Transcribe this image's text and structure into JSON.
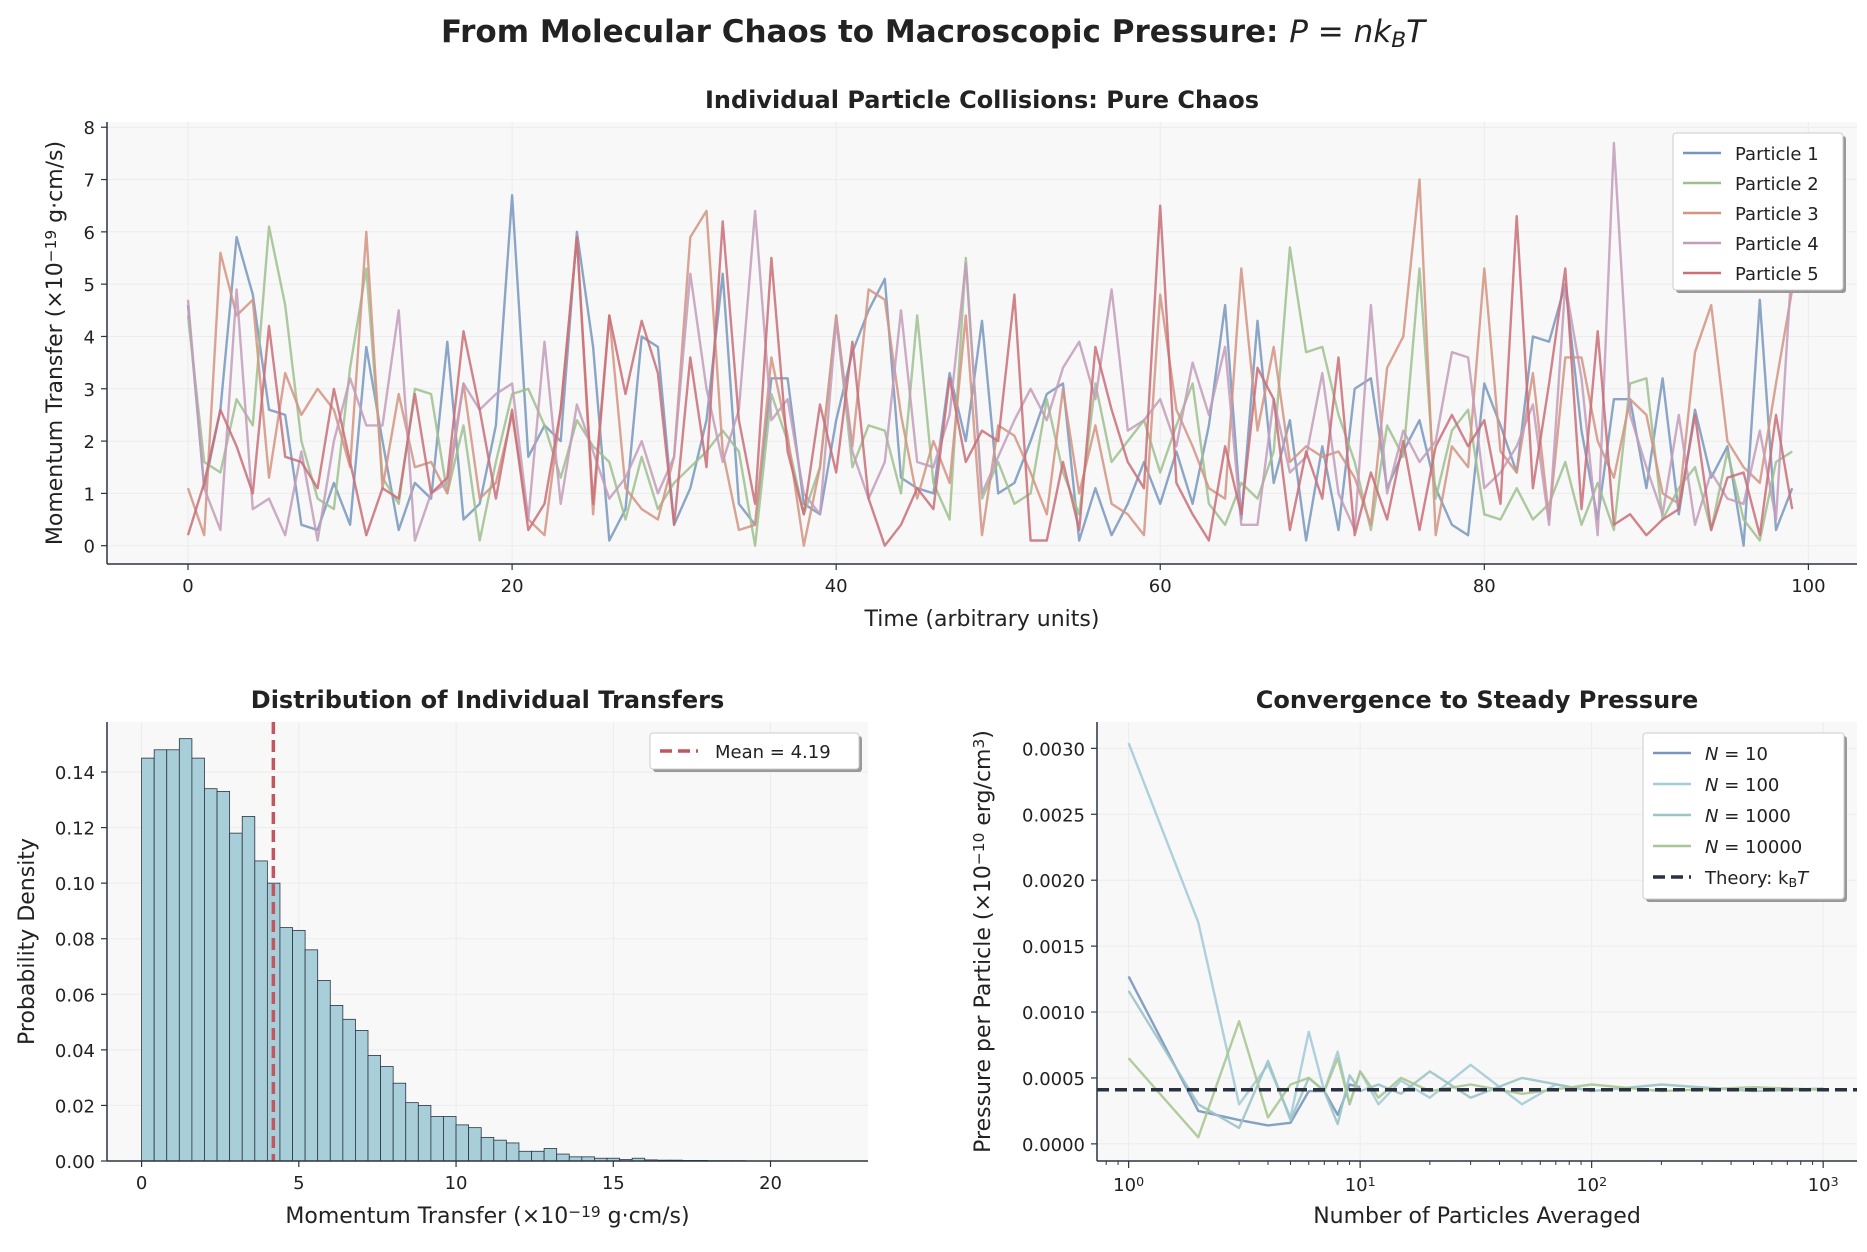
{
  "figure": {
    "suptitle": "From Molecular Chaos to Macroscopic Pressure: P = nk",
    "suptitle_sub": "B",
    "suptitle_tail": "T"
  },
  "chart_data": [
    {
      "id": "collisions",
      "type": "line",
      "title": "Individual Particle Collisions: Pure Chaos",
      "xlabel": "Time (arbitrary units)",
      "ylabel": "Momentum Transfer (×10",
      "ylabel_exp": "−19",
      "ylabel_tail": " g·cm/s)",
      "xlim": [
        -5,
        103
      ],
      "ylim": [
        -0.35,
        8.1
      ],
      "xticks": [
        0,
        20,
        40,
        60,
        80,
        100
      ],
      "yticks": [
        0,
        1,
        2,
        3,
        4,
        5,
        6,
        7,
        8
      ],
      "x_start": 0,
      "x_step": 1,
      "legend": "top-right",
      "series": [
        {
          "name": "Particle 1",
          "color": "#7896bd",
          "values": [
            4.6,
            1.1,
            2.6,
            5.9,
            4.8,
            2.6,
            2.5,
            0.4,
            0.3,
            1.2,
            0.4,
            3.8,
            2.0,
            0.3,
            1.2,
            0.9,
            3.9,
            0.5,
            0.8,
            2.3,
            6.7,
            1.7,
            2.3,
            2.0,
            6.0,
            3.8,
            0.1,
            0.7,
            4.0,
            3.8,
            0.4,
            1.1,
            2.4,
            5.2,
            0.8,
            0.4,
            3.2,
            3.2,
            0.8,
            0.6,
            2.4,
            3.7,
            4.5,
            5.1,
            1.3,
            1.1,
            1.0,
            3.3,
            2.0,
            4.3,
            1.0,
            1.2,
            2.0,
            2.9,
            3.1,
            0.1,
            1.1,
            0.2,
            0.8,
            1.6,
            0.8,
            1.8,
            0.8,
            2.3,
            4.6,
            0.5,
            4.3,
            1.2,
            2.4,
            0.1,
            1.9,
            0.3,
            3.0,
            3.2,
            1.1,
            1.8,
            2.4,
            1.1,
            0.4,
            0.2,
            3.1,
            2.3,
            1.4,
            4.0,
            3.9,
            5.0,
            2.2,
            0.5,
            2.8,
            2.8,
            1.1,
            3.2,
            0.6,
            2.6,
            1.3,
            1.9,
            0.0,
            4.7,
            0.3,
            1.1
          ]
        },
        {
          "name": "Particle 2",
          "color": "#9fc08e",
          "values": [
            4.4,
            1.6,
            1.4,
            2.8,
            2.3,
            6.1,
            4.6,
            2.0,
            0.9,
            0.7,
            3.4,
            5.3,
            1.3,
            0.8,
            3.0,
            2.9,
            1.0,
            2.3,
            0.1,
            1.6,
            2.9,
            3.0,
            2.3,
            1.3,
            2.4,
            1.9,
            1.6,
            0.5,
            1.7,
            0.7,
            1.2,
            1.5,
            1.8,
            2.2,
            1.8,
            0.0,
            2.9,
            2.0,
            0.6,
            1.5,
            4.4,
            1.5,
            2.3,
            2.2,
            1.0,
            4.4,
            1.2,
            0.5,
            5.5,
            0.9,
            1.6,
            0.8,
            1.0,
            2.8,
            1.4,
            0.6,
            3.1,
            1.6,
            2.0,
            2.4,
            1.4,
            2.3,
            3.1,
            0.8,
            0.4,
            1.2,
            0.9,
            1.8,
            5.7,
            3.7,
            3.8,
            2.5,
            1.6,
            0.3,
            2.3,
            1.7,
            5.3,
            0.9,
            2.2,
            2.6,
            0.6,
            0.5,
            1.1,
            0.5,
            0.8,
            1.6,
            0.4,
            1.2,
            0.3,
            3.1,
            3.2,
            0.5,
            1.1,
            1.5,
            0.3,
            1.8,
            0.5,
            0.1,
            1.6,
            1.8
          ]
        },
        {
          "name": "Particle 3",
          "color": "#d49482",
          "values": [
            1.1,
            0.2,
            5.6,
            4.4,
            4.7,
            1.3,
            3.3,
            2.5,
            3.0,
            2.6,
            1.5,
            6.0,
            1.1,
            2.9,
            1.5,
            1.6,
            1.0,
            3.1,
            0.9,
            1.2,
            2.5,
            0.5,
            0.2,
            2.6,
            5.9,
            0.6,
            4.4,
            1.1,
            0.7,
            0.5,
            1.7,
            5.9,
            6.4,
            1.8,
            0.3,
            0.4,
            3.6,
            2.1,
            0.0,
            1.5,
            4.4,
            1.9,
            4.9,
            4.7,
            2.5,
            0.9,
            2.0,
            1.2,
            4.4,
            0.2,
            2.3,
            2.1,
            1.4,
            0.6,
            3.0,
            1.0,
            2.3,
            0.8,
            0.6,
            0.2,
            4.8,
            2.6,
            1.9,
            1.1,
            0.9,
            5.3,
            2.2,
            3.8,
            1.6,
            1.9,
            1.7,
            1.8,
            1.3,
            0.4,
            3.4,
            4.0,
            7.0,
            0.2,
            1.9,
            1.5,
            5.3,
            1.8,
            1.4,
            3.3,
            0.5,
            3.6,
            3.6,
            2.0,
            1.3,
            2.8,
            2.5,
            1.0,
            0.8,
            3.7,
            4.6,
            2.0,
            1.5,
            1.2,
            3.1,
            4.9
          ]
        },
        {
          "name": "Particle 4",
          "color": "#c39cbb",
          "values": [
            4.7,
            1.1,
            0.3,
            4.9,
            0.7,
            0.9,
            0.2,
            1.8,
            0.1,
            2.0,
            3.2,
            2.3,
            2.3,
            4.5,
            0.1,
            1.0,
            1.2,
            3.1,
            2.6,
            2.9,
            3.1,
            0.5,
            3.9,
            0.8,
            2.7,
            1.8,
            0.9,
            1.3,
            2.0,
            1.0,
            1.7,
            5.2,
            3.0,
            1.6,
            2.6,
            6.4,
            2.4,
            2.8,
            1.0,
            0.6,
            4.3,
            1.8,
            0.9,
            1.6,
            4.5,
            1.6,
            1.5,
            2.5,
            5.4,
            1.0,
            1.7,
            2.4,
            3.0,
            2.4,
            3.4,
            3.9,
            2.8,
            4.9,
            2.2,
            2.4,
            2.8,
            1.9,
            3.5,
            2.5,
            3.8,
            0.4,
            0.4,
            2.8,
            1.4,
            1.7,
            3.3,
            1.0,
            0.3,
            4.6,
            1.0,
            2.2,
            1.6,
            2.0,
            3.7,
            3.6,
            1.1,
            1.4,
            1.9,
            2.7,
            0.4,
            5.0,
            3.2,
            0.2,
            7.7,
            2.5,
            1.5,
            0.6,
            2.5,
            0.4,
            1.4,
            0.9,
            0.8,
            2.2,
            0.5,
            5.5
          ]
        },
        {
          "name": "Particle 5",
          "color": "#c96f78",
          "values": [
            0.2,
            1.2,
            2.6,
            1.9,
            1.0,
            4.2,
            1.7,
            1.6,
            1.1,
            3.0,
            1.6,
            0.2,
            1.1,
            0.9,
            2.9,
            1.0,
            1.3,
            4.1,
            2.6,
            0.9,
            2.6,
            0.3,
            0.8,
            2.6,
            5.9,
            0.8,
            4.4,
            2.9,
            4.3,
            3.3,
            0.4,
            3.6,
            1.5,
            6.2,
            2.4,
            0.8,
            5.5,
            1.8,
            0.6,
            2.7,
            1.4,
            3.9,
            0.9,
            0.0,
            0.4,
            1.1,
            0.7,
            3.2,
            1.6,
            2.2,
            2.0,
            4.8,
            0.1,
            0.1,
            1.6,
            0.3,
            3.8,
            2.6,
            1.6,
            1.1,
            6.5,
            1.2,
            0.6,
            0.1,
            1.9,
            0.6,
            3.4,
            2.8,
            0.3,
            1.8,
            0.9,
            3.6,
            0.2,
            1.4,
            0.5,
            2.0,
            0.3,
            1.9,
            2.5,
            1.9,
            2.4,
            0.8,
            6.3,
            1.1,
            3.1,
            5.3,
            0.7,
            4.1,
            0.4,
            0.6,
            0.2,
            0.5,
            0.7,
            2.5,
            0.3,
            1.3,
            1.4,
            0.2,
            2.5,
            0.7
          ]
        }
      ]
    },
    {
      "id": "histogram",
      "type": "bar",
      "title": "Distribution of Individual Transfers",
      "xlabel": "Momentum Transfer (×10",
      "xlabel_exp": "−19",
      "xlabel_tail": " g·cm/s)",
      "ylabel": "Probability Density",
      "xlim": [
        -1.1,
        23.1
      ],
      "ylim": [
        0,
        0.158
      ],
      "xticks": [
        0,
        5,
        10,
        15,
        20
      ],
      "yticks": [
        0.0,
        0.02,
        0.04,
        0.06,
        0.08,
        0.1,
        0.12,
        0.14
      ],
      "bin_start": 0,
      "bin_width": 0.4,
      "bar_color": "#a8cfd9",
      "densities": [
        0.145,
        0.148,
        0.148,
        0.152,
        0.145,
        0.134,
        0.133,
        0.118,
        0.124,
        0.108,
        0.1,
        0.084,
        0.083,
        0.076,
        0.065,
        0.056,
        0.051,
        0.047,
        0.038,
        0.034,
        0.028,
        0.021,
        0.02,
        0.016,
        0.016,
        0.013,
        0.012,
        0.0085,
        0.0075,
        0.0065,
        0.0035,
        0.0035,
        0.0045,
        0.0025,
        0.0015,
        0.0015,
        0.001,
        0.001,
        0.0005,
        0.001,
        0.0004,
        0.0003,
        0.0003,
        0.0002,
        0.0002,
        0.0001,
        0.0001,
        0.0001
      ],
      "mean_line": {
        "value": 4.19,
        "label": "Mean = 4.19",
        "color": "#c0565e"
      },
      "legend": "top-right"
    },
    {
      "id": "convergence",
      "type": "line",
      "title": "Convergence to Steady Pressure",
      "xlabel": "Number of Particles Averaged",
      "ylabel": "Pressure per Particle (×10",
      "ylabel_exp": "−10",
      "ylabel_tail": " erg/cm",
      "ylabel_exp2": "3",
      "ylabel_end": ")",
      "xscale": "log",
      "xlim": [
        0.73,
        1400
      ],
      "ylim": [
        -0.00013,
        0.0032
      ],
      "xticks": [
        1,
        10,
        100,
        1000
      ],
      "xtick_base": "10",
      "xtick_exps": [
        "0",
        "1",
        "2",
        "3"
      ],
      "yticks": [
        0.0,
        0.0005,
        0.001,
        0.0015,
        0.002,
        0.0025,
        0.003
      ],
      "ytick_labels": [
        "0.0000",
        "0.0005",
        "0.0010",
        "0.0015",
        "0.0020",
        "0.0025",
        "0.0030"
      ],
      "theory": {
        "value": 0.00041,
        "label": "Theory: k",
        "label_sub": "B",
        "label_tail": "T",
        "color": "#2a3240"
      },
      "legend": "top-right",
      "series": [
        {
          "name": "N = 10",
          "label_var": "N",
          "label_val": " = 10",
          "color": "#7896bd",
          "x": [
            1,
            2,
            3,
            4,
            5,
            6,
            7,
            8,
            9,
            10
          ],
          "values": [
            0.00127,
            0.00025,
            0.00018,
            0.00014,
            0.00016,
            0.0004,
            0.0004,
            0.00022,
            0.00045,
            0.00043
          ]
        },
        {
          "name": "N = 100",
          "label_var": "N",
          "label_val": " = 100",
          "color": "#a4cbd8",
          "x": [
            1,
            2,
            3,
            4,
            5,
            6,
            7,
            8,
            9,
            10,
            12,
            15,
            20,
            30,
            50,
            70,
            100
          ],
          "values": [
            0.00304,
            0.00168,
            0.0003,
            0.0006,
            0.0002,
            0.00085,
            0.0004,
            0.0007,
            0.0003,
            0.00055,
            0.0003,
            0.00048,
            0.00035,
            0.0006,
            0.0003,
            0.00045,
            0.0004
          ]
        },
        {
          "name": "N = 1000",
          "label_var": "N",
          "label_val": " = 1000",
          "color": "#9cc3c8",
          "x": [
            1,
            2,
            3,
            4,
            5,
            6,
            7,
            8,
            9,
            10,
            12,
            15,
            20,
            30,
            50,
            100,
            200,
            500,
            1000
          ],
          "values": [
            0.00116,
            0.0003,
            0.00012,
            0.00063,
            0.00018,
            0.0005,
            0.0004,
            0.00015,
            0.00052,
            0.0004,
            0.00045,
            0.00038,
            0.00055,
            0.00035,
            0.0005,
            0.0004,
            0.00045,
            0.0004,
            0.00042
          ]
        },
        {
          "name": "N = 10000",
          "label_var": "N",
          "label_val": " = 10000",
          "color": "#a9c795",
          "x": [
            1,
            2,
            3,
            4,
            5,
            6,
            7,
            8,
            9,
            10,
            12,
            15,
            20,
            30,
            50,
            100,
            200,
            500,
            1000
          ],
          "values": [
            0.00065,
            5e-05,
            0.00093,
            0.0002,
            0.00045,
            0.0005,
            0.0004,
            0.00065,
            0.0003,
            0.00055,
            0.00035,
            0.0005,
            0.0004,
            0.00045,
            0.00038,
            0.00045,
            0.0004,
            0.00043,
            0.00041
          ]
        }
      ]
    }
  ]
}
